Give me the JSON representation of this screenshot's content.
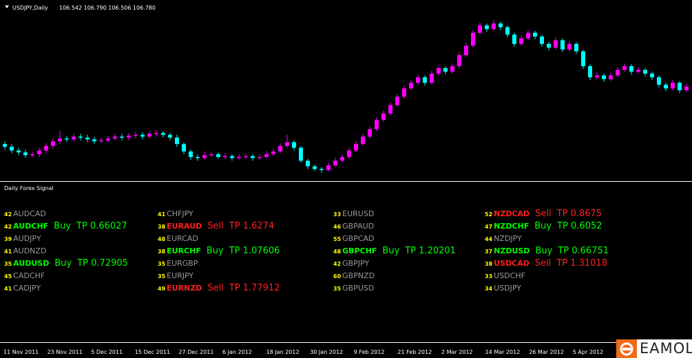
{
  "header": {
    "symbol": "USDJPY,Daily",
    "ohlc": "106.542 106.790 106.506 106.780"
  },
  "indicator": "Daily Forex Signal",
  "chart_data": {
    "type": "candlestick",
    "up_color": "#ff00ff",
    "down_color": "#00ffff",
    "ylim": [
      75.6,
      84.4
    ],
    "x_labels": [
      "11 Nov 2011",
      "23 Nov 2011",
      "5 Dec 2011",
      "15 Dec 2011",
      "27 Dec 2011",
      "6 Jan 2012",
      "18 Jan 2012",
      "30 Jan 2012",
      "9 Feb 2012",
      "21 Feb 2012",
      "2 Mar 2012",
      "14 Mar 2012",
      "26 Mar 2012",
      "5 Apr 2012"
    ],
    "candles": [
      [
        77.3,
        77.45,
        77.0,
        77.15
      ],
      [
        77.15,
        77.3,
        76.8,
        76.95
      ],
      [
        76.95,
        77.1,
        76.7,
        76.85
      ],
      [
        76.85,
        77.0,
        76.55,
        76.7
      ],
      [
        76.7,
        76.9,
        76.6,
        76.75
      ],
      [
        76.75,
        77.1,
        76.6,
        76.95
      ],
      [
        76.95,
        77.35,
        76.8,
        77.2
      ],
      [
        77.2,
        77.6,
        77.05,
        77.45
      ],
      [
        77.45,
        78.0,
        77.3,
        77.6
      ],
      [
        77.6,
        77.75,
        77.4,
        77.55
      ],
      [
        77.55,
        77.85,
        77.4,
        77.7
      ],
      [
        77.7,
        77.85,
        77.5,
        77.65
      ],
      [
        77.65,
        77.8,
        77.4,
        77.55
      ],
      [
        77.55,
        77.7,
        77.3,
        77.45
      ],
      [
        77.45,
        77.65,
        77.35,
        77.5
      ],
      [
        77.5,
        77.75,
        77.4,
        77.6
      ],
      [
        77.6,
        77.85,
        77.5,
        77.7
      ],
      [
        77.7,
        77.85,
        77.5,
        77.65
      ],
      [
        77.65,
        77.9,
        77.5,
        77.75
      ],
      [
        77.75,
        77.95,
        77.6,
        77.8
      ],
      [
        77.8,
        77.95,
        77.55,
        77.7
      ],
      [
        77.7,
        78.0,
        77.6,
        77.85
      ],
      [
        77.85,
        78.05,
        77.7,
        77.9
      ],
      [
        77.9,
        78.0,
        77.65,
        77.8
      ],
      [
        77.8,
        77.9,
        77.5,
        77.65
      ],
      [
        77.65,
        77.8,
        77.15,
        77.3
      ],
      [
        77.3,
        77.4,
        76.75,
        76.9
      ],
      [
        76.9,
        77.0,
        76.45,
        76.6
      ],
      [
        76.6,
        76.75,
        76.4,
        76.55
      ],
      [
        76.55,
        76.9,
        76.45,
        76.7
      ],
      [
        76.7,
        76.9,
        76.6,
        76.75
      ],
      [
        76.75,
        76.85,
        76.5,
        76.6
      ],
      [
        76.6,
        76.8,
        76.5,
        76.65
      ],
      [
        76.65,
        76.75,
        76.4,
        76.55
      ],
      [
        76.55,
        76.75,
        76.45,
        76.6
      ],
      [
        76.6,
        76.8,
        76.5,
        76.65
      ],
      [
        76.65,
        76.75,
        76.4,
        76.55
      ],
      [
        76.55,
        76.75,
        76.45,
        76.6
      ],
      [
        76.6,
        76.9,
        76.5,
        76.75
      ],
      [
        76.75,
        77.05,
        76.65,
        76.9
      ],
      [
        76.9,
        77.35,
        76.8,
        77.2
      ],
      [
        77.2,
        77.8,
        77.1,
        77.4
      ],
      [
        77.4,
        77.5,
        76.95,
        77.1
      ],
      [
        77.1,
        77.2,
        76.3,
        76.4
      ],
      [
        76.4,
        76.5,
        75.95,
        76.1
      ],
      [
        76.1,
        76.2,
        75.85,
        75.95
      ],
      [
        75.95,
        76.05,
        75.75,
        75.9
      ],
      [
        75.9,
        76.3,
        75.8,
        76.15
      ],
      [
        76.15,
        76.55,
        76.05,
        76.4
      ],
      [
        76.4,
        76.75,
        76.3,
        76.6
      ],
      [
        76.6,
        77.1,
        76.5,
        76.95
      ],
      [
        76.95,
        77.45,
        76.85,
        77.3
      ],
      [
        77.3,
        77.85,
        77.2,
        77.7
      ],
      [
        77.7,
        78.25,
        77.6,
        78.1
      ],
      [
        78.1,
        78.75,
        78.0,
        78.6
      ],
      [
        78.6,
        79.1,
        78.5,
        78.95
      ],
      [
        78.95,
        79.55,
        78.85,
        79.4
      ],
      [
        79.4,
        80.0,
        79.3,
        79.85
      ],
      [
        79.85,
        80.45,
        79.75,
        80.3
      ],
      [
        80.3,
        80.75,
        80.2,
        80.6
      ],
      [
        80.6,
        81.05,
        80.5,
        80.9
      ],
      [
        80.9,
        81.0,
        80.45,
        80.6
      ],
      [
        80.6,
        81.25,
        80.5,
        81.1
      ],
      [
        81.1,
        81.55,
        81.0,
        81.4
      ],
      [
        81.4,
        81.5,
        81.05,
        81.2
      ],
      [
        81.2,
        81.65,
        81.1,
        81.5
      ],
      [
        81.5,
        82.25,
        81.4,
        82.1
      ],
      [
        82.1,
        82.75,
        82.0,
        82.6
      ],
      [
        82.6,
        83.45,
        82.5,
        83.3
      ],
      [
        83.3,
        83.85,
        83.2,
        83.7
      ],
      [
        83.7,
        83.8,
        83.35,
        83.5
      ],
      [
        83.5,
        84.0,
        83.4,
        83.8
      ],
      [
        83.8,
        83.9,
        83.45,
        83.6
      ],
      [
        83.6,
        83.7,
        83.05,
        83.2
      ],
      [
        83.2,
        83.3,
        82.55,
        82.7
      ],
      [
        82.7,
        83.15,
        82.6,
        83.0
      ],
      [
        83.0,
        83.45,
        82.9,
        83.3
      ],
      [
        83.3,
        83.4,
        82.95,
        83.1
      ],
      [
        83.1,
        83.2,
        82.55,
        82.7
      ],
      [
        82.7,
        82.8,
        82.35,
        82.5
      ],
      [
        82.5,
        83.05,
        82.4,
        82.9
      ],
      [
        82.9,
        83.0,
        82.25,
        82.4
      ],
      [
        82.4,
        82.85,
        82.3,
        82.7
      ],
      [
        82.7,
        82.8,
        82.15,
        82.3
      ],
      [
        82.3,
        82.4,
        81.35,
        81.5
      ],
      [
        81.5,
        81.6,
        80.75,
        80.9
      ],
      [
        80.9,
        81.15,
        80.8,
        81.0
      ],
      [
        81.0,
        81.1,
        80.65,
        80.8
      ],
      [
        80.8,
        81.15,
        80.7,
        81.0
      ],
      [
        81.0,
        81.45,
        80.9,
        81.3
      ],
      [
        81.3,
        81.65,
        81.2,
        81.5
      ],
      [
        81.5,
        81.6,
        81.05,
        81.2
      ],
      [
        81.2,
        81.45,
        81.1,
        81.3
      ],
      [
        81.3,
        81.4,
        80.95,
        81.1
      ],
      [
        81.1,
        81.2,
        80.75,
        80.9
      ],
      [
        80.9,
        81.0,
        80.35,
        80.5
      ],
      [
        80.5,
        80.6,
        80.15,
        80.3
      ],
      [
        80.3,
        80.75,
        80.2,
        80.6
      ],
      [
        80.6,
        80.7,
        80.05,
        80.2
      ],
      [
        80.2,
        80.55,
        80.1,
        80.4
      ]
    ]
  },
  "signals": [
    [
      {
        "strength": "42",
        "pair": "AUDCAD"
      },
      {
        "strength": "42",
        "pair": "AUDCHF",
        "action": "Buy",
        "tp": "TP 0.66027"
      },
      {
        "strength": "39",
        "pair": "AUDJPY"
      },
      {
        "strength": "41",
        "pair": "AUDNZD"
      },
      {
        "strength": "35",
        "pair": "AUDUSD",
        "action": "Buy",
        "tp": "TP 0.72905"
      },
      {
        "strength": "45",
        "pair": "CADCHF"
      },
      {
        "strength": "41",
        "pair": "CADJPY"
      }
    ],
    [
      {
        "strength": "41",
        "pair": "CHFJPY"
      },
      {
        "strength": "38",
        "pair": "EURAUD",
        "action": "Sell",
        "tp": "TP 1.6274"
      },
      {
        "strength": "48",
        "pair": "EURCAD"
      },
      {
        "strength": "38",
        "pair": "EURCHF",
        "action": "Buy",
        "tp": "TP 1.07606"
      },
      {
        "strength": "35",
        "pair": "EURGBP"
      },
      {
        "strength": "35",
        "pair": "EURJPY"
      },
      {
        "strength": "49",
        "pair": "EURNZD",
        "action": "Sell",
        "tp": "TP 1.77912"
      }
    ],
    [
      {
        "strength": "33",
        "pair": "EURUSD"
      },
      {
        "strength": "46",
        "pair": "GBPAUD"
      },
      {
        "strength": "55",
        "pair": "GBPCAD"
      },
      {
        "strength": "48",
        "pair": "GBPCHF",
        "action": "Buy",
        "tp": "TP 1.20201"
      },
      {
        "strength": "42",
        "pair": "GBPJPY"
      },
      {
        "strength": "60",
        "pair": "GBPNZD"
      },
      {
        "strength": "35",
        "pair": "GBPUSD"
      }
    ],
    [
      {
        "strength": "52",
        "pair": "NZDCAD",
        "action": "Sell",
        "tp": "TP 0.8675"
      },
      {
        "strength": "47",
        "pair": "NZDCHF",
        "action": "Buy",
        "tp": "TP 0.6052"
      },
      {
        "strength": "44",
        "pair": "NZDJPY"
      },
      {
        "strength": "37",
        "pair": "NZDUSD",
        "action": "Buy",
        "tp": "TP 0.66751"
      },
      {
        "strength": "38",
        "pair": "USDCAD",
        "action": "Sell",
        "tp": "TP 1.31018"
      },
      {
        "strength": "33",
        "pair": "USDCHF"
      },
      {
        "strength": "34",
        "pair": "USDJPY"
      }
    ]
  ],
  "watermark": "EAMOL"
}
